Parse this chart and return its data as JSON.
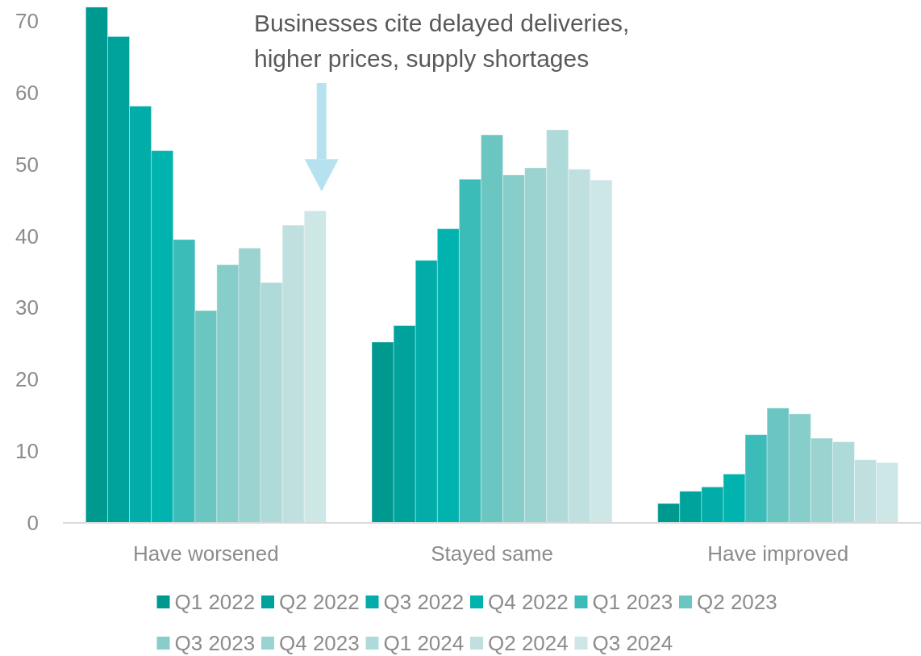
{
  "chart_data": {
    "type": "bar",
    "categories": [
      "Have worsened",
      "Stayed same",
      "Have improved"
    ],
    "series": [
      {
        "name": "Q1 2022",
        "color": "#009990",
        "values": [
          71.9,
          25.2,
          2.7
        ]
      },
      {
        "name": "Q2 2022",
        "color": "#00a29c",
        "values": [
          67.8,
          27.5,
          4.4
        ]
      },
      {
        "name": "Q3 2022",
        "color": "#02aca8",
        "values": [
          58.1,
          36.6,
          5.0
        ]
      },
      {
        "name": "Q4 2022",
        "color": "#00b3ae",
        "values": [
          51.9,
          41.0,
          6.8
        ]
      },
      {
        "name": "Q1 2023",
        "color": "#3bbcb8",
        "values": [
          39.5,
          47.9,
          12.3
        ]
      },
      {
        "name": "Q2 2023",
        "color": "#6bc6c2",
        "values": [
          29.6,
          54.1,
          16.0
        ]
      },
      {
        "name": "Q3 2023",
        "color": "#87ceca",
        "values": [
          36.0,
          48.5,
          15.2
        ]
      },
      {
        "name": "Q4 2023",
        "color": "#9ad3cf",
        "values": [
          38.3,
          49.5,
          11.8
        ]
      },
      {
        "name": "Q1 2024",
        "color": "#afdada",
        "values": [
          33.5,
          54.8,
          11.3
        ]
      },
      {
        "name": "Q2 2024",
        "color": "#bfe0df",
        "values": [
          41.5,
          49.3,
          8.8
        ]
      },
      {
        "name": "Q3 2024",
        "color": "#cde6e6",
        "values": [
          43.5,
          47.8,
          8.4
        ]
      }
    ],
    "ylim": [
      0,
      72
    ],
    "yticks": [
      0,
      10,
      20,
      30,
      40,
      50,
      60,
      70
    ],
    "grid": false,
    "legend": "bottom",
    "annotations": [
      "Businesses cite delayed deliveries,\nhigher prices, supply shortages"
    ]
  }
}
